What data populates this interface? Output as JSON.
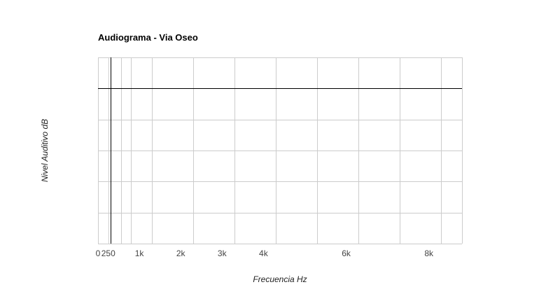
{
  "chart_data": {
    "type": "line",
    "title": "Audiograma - Via Oseo",
    "xlabel": "Frecuencia Hz",
    "ylabel": "Nivel Auditivo dB",
    "x_scale": "linear",
    "xlim": [
      0,
      8800
    ],
    "x_ticks": [
      {
        "value": 0,
        "label": "0"
      },
      {
        "value": 250,
        "label": "250"
      },
      {
        "value": 1000,
        "label": "1k"
      },
      {
        "value": 2000,
        "label": "2k"
      },
      {
        "value": 3000,
        "label": "3k"
      },
      {
        "value": 4000,
        "label": "4k"
      },
      {
        "value": 6000,
        "label": "6k"
      },
      {
        "value": 8000,
        "label": "8k"
      }
    ],
    "x_gridlines": [
      250,
      550,
      800,
      1300,
      2300,
      3300,
      4300,
      5300,
      6300,
      7300,
      8300,
      8800
    ],
    "y_gridline_count": 6,
    "y_tick_labels": [],
    "reference_lines": {
      "vertical_x": 300,
      "horizontal_at_gridline": 1
    },
    "grid": true,
    "series": [],
    "legend": "none"
  },
  "colors": {
    "grid": "#cccccc",
    "reference_line": "#000000",
    "background": "#ffffff"
  }
}
